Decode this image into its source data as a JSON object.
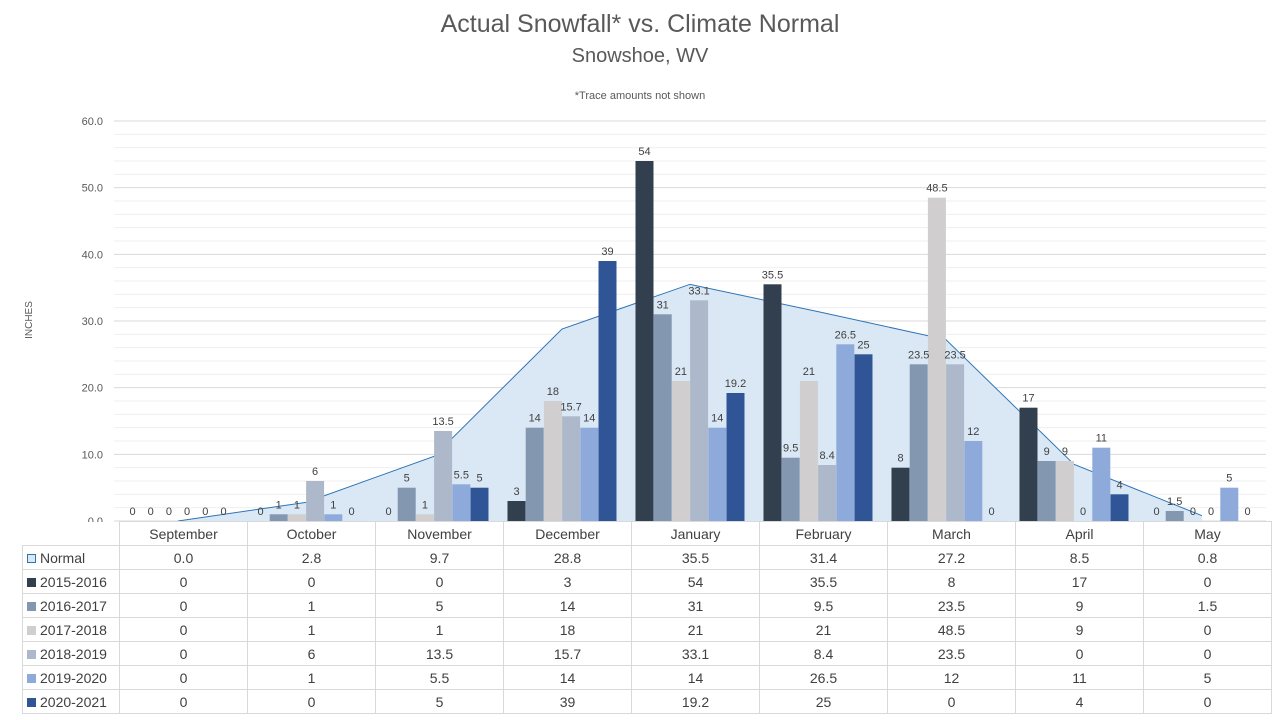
{
  "chart_data": {
    "type": "bar",
    "title": "Actual Snowfall* vs. Climate Normal",
    "subtitle": "Snowshoe, WV",
    "note": "*Trace amounts not shown",
    "ylabel": "INCHES",
    "ylim": [
      0,
      60
    ],
    "yticks": [
      "0.0",
      "10.0",
      "20.0",
      "30.0",
      "40.0",
      "50.0",
      "60.0"
    ],
    "grid": true,
    "legend_placement": "data table",
    "categories": [
      "September",
      "October",
      "November",
      "December",
      "January",
      "February",
      "March",
      "April",
      "May"
    ],
    "normal": {
      "name": "Normal",
      "type": "area",
      "color": "#dae8f5",
      "line_color": "#2e75b6",
      "values": [
        0.0,
        2.8,
        9.7,
        28.8,
        35.5,
        31.4,
        27.2,
        8.5,
        0.8
      ],
      "labels": [
        "0.0",
        "2.8",
        "9.7",
        "28.8",
        "35.5",
        "31.4",
        "27.2",
        "8.5",
        "0.8"
      ]
    },
    "series": [
      {
        "name": "2015-2016",
        "color": "#323f4f",
        "values": [
          0,
          0,
          0,
          3,
          54,
          35.5,
          8,
          17,
          0
        ]
      },
      {
        "name": "2016-2017",
        "color": "#8497b0",
        "values": [
          0,
          1,
          5,
          14,
          31,
          9.5,
          23.5,
          9,
          1.5
        ]
      },
      {
        "name": "2017-2018",
        "color": "#d0cece",
        "values": [
          0,
          1,
          1,
          18,
          21,
          21,
          48.5,
          9,
          0
        ]
      },
      {
        "name": "2018-2019",
        "color": "#adb9ca",
        "values": [
          0,
          6,
          13.5,
          15.7,
          33.1,
          8.4,
          23.5,
          0,
          0
        ]
      },
      {
        "name": "2019-2020",
        "color": "#8eaadb",
        "values": [
          0,
          1,
          5.5,
          14,
          14,
          26.5,
          12,
          11,
          5
        ]
      },
      {
        "name": "2020-2021",
        "color": "#2f5597",
        "values": [
          0,
          0,
          5,
          39,
          19.2,
          25,
          0,
          4,
          0
        ]
      }
    ]
  }
}
